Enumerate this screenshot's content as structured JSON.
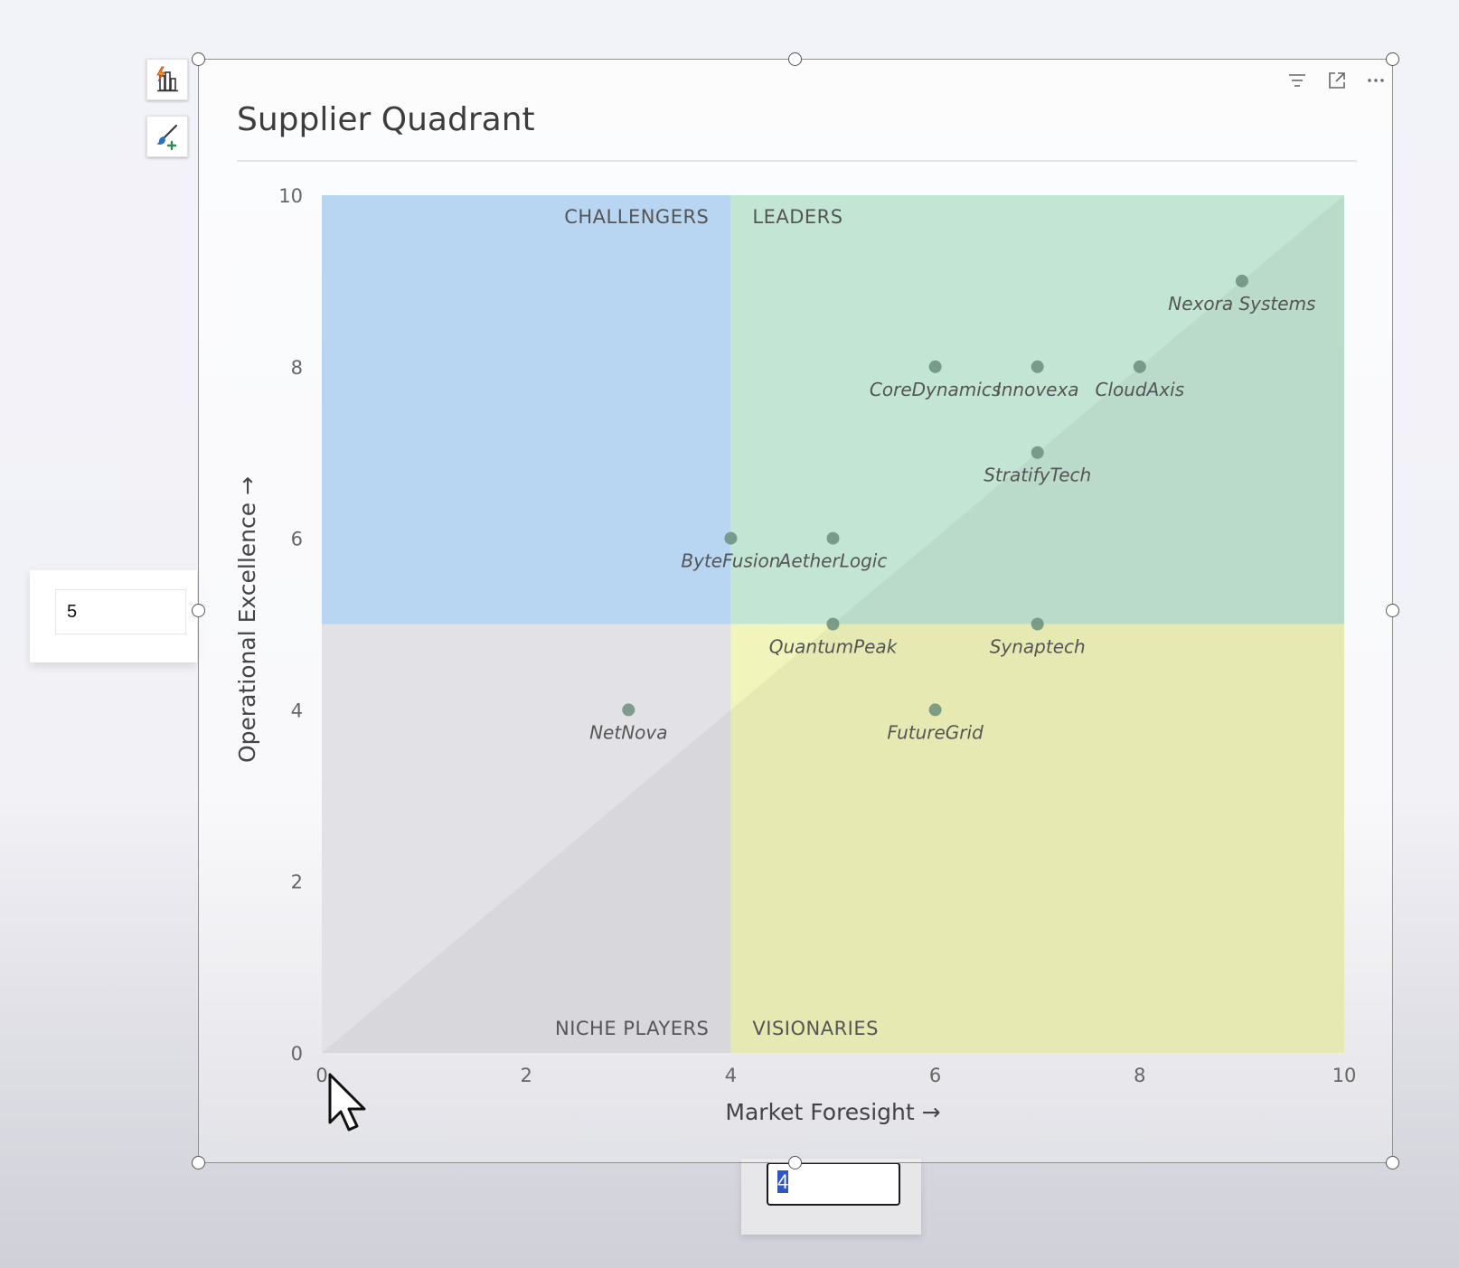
{
  "toolbar": {
    "left_buttons": [
      {
        "name": "quick-insights",
        "icon": "lightning-chart-icon"
      },
      {
        "name": "format-visual",
        "icon": "paintbrush-plus-icon"
      }
    ],
    "header_icons": [
      "filter-icon",
      "focus-mode-icon",
      "more-options-icon"
    ]
  },
  "left_input": {
    "value": "5"
  },
  "bottom_input": {
    "value": "4"
  },
  "colors": {
    "challengers": "#b8d5f2",
    "leaders": "#c3e5d4",
    "niche": "#e2e1e6",
    "visionaries": "#f1f5bb",
    "point": "#6b8f7c"
  },
  "chart_data": {
    "type": "scatter",
    "title": "Supplier Quadrant",
    "xlabel": "Market Foresight →",
    "ylabel": "Operational Excellence →",
    "xlim": [
      0,
      10
    ],
    "ylim": [
      0,
      10
    ],
    "xticks": [
      0,
      2,
      4,
      6,
      8,
      10
    ],
    "yticks": [
      0,
      2,
      4,
      6,
      8,
      10
    ],
    "x_threshold": 4,
    "y_threshold": 5,
    "quadrant_labels": {
      "top_left": "CHALLENGERS",
      "top_right": "LEADERS",
      "bottom_left": "NICHE PLAYERS",
      "bottom_right": "VISIONARIES"
    },
    "points": [
      {
        "label": "Nexora Systems",
        "x": 9,
        "y": 9
      },
      {
        "label": "CoreDynamics",
        "x": 6,
        "y": 8
      },
      {
        "label": "Innovexa",
        "x": 7,
        "y": 8
      },
      {
        "label": "CloudAxis",
        "x": 8,
        "y": 8
      },
      {
        "label": "StratifyTech",
        "x": 7,
        "y": 7
      },
      {
        "label": "ByteFusion",
        "x": 4,
        "y": 6
      },
      {
        "label": "AetherLogic",
        "x": 5,
        "y": 6
      },
      {
        "label": "QuantumPeak",
        "x": 5,
        "y": 5
      },
      {
        "label": "Synaptech",
        "x": 7,
        "y": 5
      },
      {
        "label": "NetNova",
        "x": 3,
        "y": 4
      },
      {
        "label": "FutureGrid",
        "x": 6,
        "y": 4
      }
    ]
  }
}
